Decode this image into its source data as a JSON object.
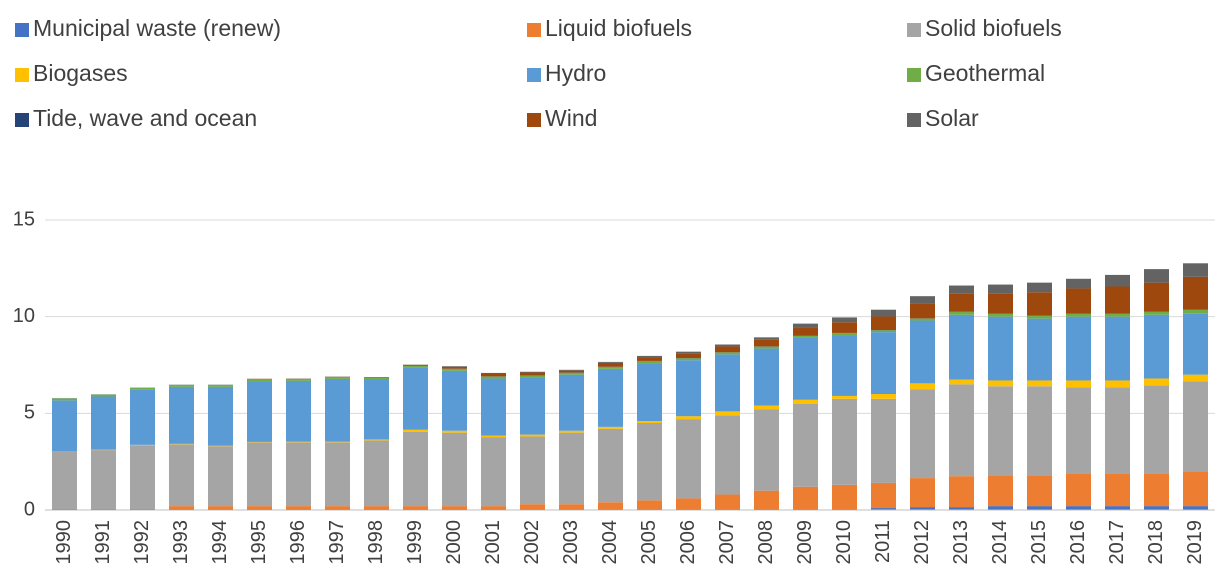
{
  "chart_data": {
    "type": "stacked_bar",
    "categories": [
      "1990",
      "1991",
      "1992",
      "1993",
      "1994",
      "1995",
      "1996",
      "1997",
      "1998",
      "1999",
      "2000",
      "2001",
      "2002",
      "2003",
      "2004",
      "2005",
      "2006",
      "2007",
      "2008",
      "2009",
      "2010",
      "2011",
      "2012",
      "2013",
      "2014",
      "2015",
      "2016",
      "2017",
      "2018",
      "2019"
    ],
    "series": [
      {
        "name": "Municipal waste (renew)",
        "color": "#4472c4",
        "values": [
          0.05,
          0.05,
          0.05,
          0.05,
          0.05,
          0.05,
          0.05,
          0.05,
          0.05,
          0.05,
          0.05,
          0.05,
          0.05,
          0.05,
          0.05,
          0.05,
          0.05,
          0.05,
          0.05,
          0.05,
          0.05,
          0.1,
          0.15,
          0.15,
          0.2,
          0.2,
          0.2,
          0.2,
          0.2,
          0.2
        ]
      },
      {
        "name": "Liquid biofuels",
        "color": "#ed7d31",
        "values": [
          0,
          0,
          0,
          0.15,
          0.15,
          0.15,
          0.15,
          0.15,
          0.15,
          0.15,
          0.15,
          0.15,
          0.25,
          0.25,
          0.35,
          0.45,
          0.55,
          0.75,
          0.95,
          1.15,
          1.25,
          1.3,
          1.5,
          1.6,
          1.6,
          1.6,
          1.7,
          1.7,
          1.7,
          1.8
        ]
      },
      {
        "name": "Solid biofuels",
        "color": "#a5a5a5",
        "values": [
          2.95,
          3.05,
          3.3,
          3.2,
          3.1,
          3.3,
          3.3,
          3.3,
          3.4,
          3.85,
          3.8,
          3.55,
          3.5,
          3.7,
          3.8,
          4.0,
          4.1,
          4.1,
          4.2,
          4.3,
          4.45,
          4.35,
          4.6,
          4.75,
          4.6,
          4.6,
          4.45,
          4.45,
          4.55,
          4.65
        ]
      },
      {
        "name": "Biogases",
        "color": "#ffc000",
        "values": [
          0.02,
          0.02,
          0.02,
          0.02,
          0.02,
          0.02,
          0.03,
          0.03,
          0.05,
          0.1,
          0.1,
          0.1,
          0.1,
          0.1,
          0.1,
          0.1,
          0.15,
          0.2,
          0.2,
          0.2,
          0.15,
          0.25,
          0.3,
          0.25,
          0.3,
          0.3,
          0.35,
          0.35,
          0.35,
          0.35
        ]
      },
      {
        "name": "Hydro",
        "color": "#5b9bd5",
        "values": [
          2.65,
          2.75,
          2.85,
          2.95,
          3.05,
          3.15,
          3.15,
          3.25,
          3.1,
          3.2,
          3.1,
          2.95,
          2.95,
          2.9,
          3.0,
          3.0,
          2.9,
          2.95,
          2.95,
          3.2,
          3.15,
          3.2,
          3.25,
          3.35,
          3.3,
          3.2,
          3.3,
          3.3,
          3.3,
          3.15
        ]
      },
      {
        "name": "Geothermal",
        "color": "#70ad47",
        "values": [
          0.1,
          0.1,
          0.1,
          0.1,
          0.1,
          0.1,
          0.1,
          0.1,
          0.1,
          0.1,
          0.1,
          0.1,
          0.1,
          0.1,
          0.1,
          0.1,
          0.1,
          0.1,
          0.1,
          0.1,
          0.1,
          0.1,
          0.1,
          0.15,
          0.15,
          0.15,
          0.15,
          0.15,
          0.15,
          0.2
        ]
      },
      {
        "name": "Tide, wave and ocean",
        "color": "#264478",
        "values": [
          0.01,
          0.01,
          0.01,
          0.01,
          0.01,
          0.01,
          0.01,
          0.01,
          0.01,
          0.01,
          0.01,
          0.01,
          0.01,
          0.01,
          0.01,
          0.01,
          0.01,
          0.01,
          0.01,
          0.01,
          0.01,
          0.01,
          0.01,
          0.01,
          0.01,
          0.01,
          0.01,
          0.01,
          0.01,
          0.01
        ]
      },
      {
        "name": "Wind",
        "color": "#9e480e",
        "values": [
          0,
          0,
          0,
          0,
          0,
          0.01,
          0.01,
          0.01,
          0.02,
          0.05,
          0.1,
          0.15,
          0.15,
          0.1,
          0.2,
          0.2,
          0.25,
          0.3,
          0.35,
          0.45,
          0.55,
          0.7,
          0.75,
          0.95,
          1.05,
          1.2,
          1.3,
          1.4,
          1.5,
          1.7
        ]
      },
      {
        "name": "Solar",
        "color": "#636363",
        "values": [
          0,
          0,
          0,
          0,
          0,
          0,
          0,
          0,
          0,
          0.01,
          0.03,
          0.03,
          0.04,
          0.04,
          0.05,
          0.06,
          0.08,
          0.1,
          0.12,
          0.18,
          0.25,
          0.35,
          0.4,
          0.4,
          0.45,
          0.5,
          0.5,
          0.6,
          0.7,
          0.7
        ]
      }
    ],
    "ylim": [
      0,
      15
    ],
    "yticks": [
      0,
      5,
      10,
      15
    ],
    "grid": true,
    "legend": "top"
  }
}
